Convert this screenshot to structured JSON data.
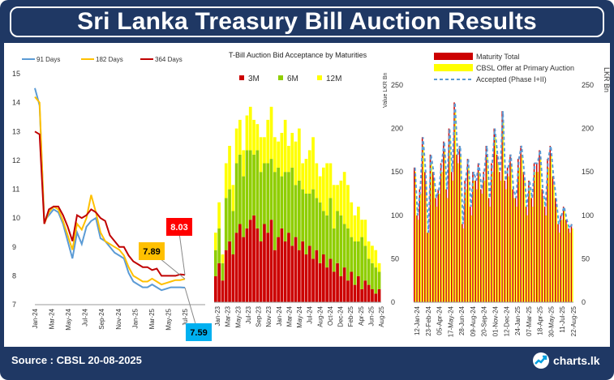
{
  "title": "Sri Lanka Treasury Bill Auction Results",
  "source": "Source : CBSL 20-08-2025",
  "brand": "charts.lk",
  "brand_icon": "chart-arrow-icon",
  "colors": {
    "frame": "#1f3864",
    "d91": "#5b9bd5",
    "d182": "#ffc000",
    "d364": "#c00000",
    "m3": "#cc0000",
    "m6": "#8fce00",
    "m12": "#ffff00",
    "maturity": "#cc0000",
    "offer": "#ffff00",
    "accepted": "#5b9bd5",
    "callout364": "#ff0000",
    "callout182": "#ffc000",
    "callout91": "#00b0f0"
  },
  "chart_data": [
    {
      "type": "line",
      "title": "",
      "legend_position": "top",
      "series": [
        {
          "name": "91 Days",
          "values": [
            14.5,
            13.9,
            9.9,
            10.1,
            10.3,
            10.2,
            9.8,
            9.2,
            8.6,
            9.5,
            9.1,
            9.7,
            9.9,
            10.0,
            9.3,
            9.2,
            9.0,
            8.8,
            8.7,
            8.6,
            8.1,
            7.8,
            7.7,
            7.6,
            7.6,
            7.7,
            7.6,
            7.5,
            7.55,
            7.6,
            7.6,
            7.6,
            7.59
          ]
        },
        {
          "name": "182 Days",
          "values": [
            14.2,
            14.0,
            9.8,
            10.2,
            10.4,
            10.3,
            9.9,
            9.4,
            8.9,
            9.8,
            9.6,
            10.0,
            10.8,
            10.2,
            9.5,
            9.2,
            9.1,
            9.0,
            8.9,
            8.7,
            8.3,
            8.0,
            7.9,
            7.8,
            7.8,
            7.9,
            7.8,
            7.7,
            7.75,
            7.8,
            7.85,
            7.85,
            7.89
          ]
        },
        {
          "name": "364 Days",
          "values": [
            13.0,
            12.9,
            9.8,
            10.3,
            10.4,
            10.4,
            10.1,
            9.7,
            9.2,
            10.1,
            10.0,
            10.1,
            10.3,
            10.2,
            10.0,
            9.9,
            9.4,
            9.2,
            9.0,
            9.0,
            8.7,
            8.5,
            8.4,
            8.3,
            8.3,
            8.2,
            8.25,
            8.0,
            8.0,
            8.0,
            8.0,
            8.05,
            8.03
          ]
        }
      ],
      "x_ticks": [
        "Jan-24",
        "Mar-24",
        "May-24",
        "Jul-24",
        "Sep-24",
        "Nov-24",
        "Jan-25",
        "Mar-25",
        "May-25",
        "Jul-25"
      ],
      "y_ticks": [
        "7",
        "8",
        "9",
        "10",
        "11",
        "12",
        "13",
        "14",
        "15"
      ],
      "ylim": [
        7,
        15
      ],
      "callouts": [
        {
          "series": "364 Days",
          "label": "8.03"
        },
        {
          "series": "182 Days",
          "label": "7.89"
        },
        {
          "series": "91 Days",
          "label": "7.59"
        }
      ]
    },
    {
      "type": "bar",
      "stacked": true,
      "title": "T-Bill Auction Bid Acceptance by Maturities",
      "ylabel": "Value LKR Bn",
      "ylim": [
        0,
        250
      ],
      "y_ticks": [
        "0",
        "50",
        "100",
        "150",
        "200",
        "250"
      ],
      "x_ticks": [
        "Jan-23",
        "Mar-23",
        "May-23",
        "Jul-23",
        "Sep-23",
        "Nov-23",
        "Jan-24",
        "Mar-24",
        "May-24",
        "Jul-24",
        "Aug-24",
        "Oct-24",
        "Dec-24",
        "Feb-25",
        "Apr-25",
        "Jun-25",
        "Aug-25"
      ],
      "legend_position": "top",
      "series": [
        {
          "name": "3M",
          "values": [
            30,
            45,
            25,
            60,
            70,
            55,
            80,
            90,
            75,
            85,
            95,
            100,
            85,
            70,
            90,
            80,
            95,
            60,
            75,
            85,
            70,
            80,
            65,
            75,
            60,
            70,
            55,
            65,
            50,
            60,
            45,
            55,
            40,
            50,
            35,
            45,
            30,
            40,
            25,
            35,
            20,
            30,
            15,
            25,
            20,
            15,
            10,
            15
          ]
        },
        {
          "name": "6M",
          "values": [
            30,
            40,
            20,
            60,
            60,
            50,
            80,
            80,
            70,
            90,
            80,
            70,
            90,
            80,
            70,
            80,
            70,
            90,
            80,
            60,
            80,
            70,
            90,
            60,
            80,
            60,
            70,
            60,
            80,
            60,
            70,
            50,
            60,
            70,
            50,
            60,
            70,
            50,
            60,
            40,
            50,
            40,
            60,
            40,
            30,
            30,
            30,
            20
          ]
        },
        {
          "name": "12M",
          "values": [
            20,
            30,
            10,
            40,
            50,
            30,
            40,
            40,
            30,
            40,
            50,
            40,
            30,
            40,
            30,
            50,
            60,
            40,
            30,
            50,
            60,
            30,
            40,
            50,
            60,
            30,
            40,
            50,
            60,
            40,
            30,
            50,
            60,
            40,
            50,
            30,
            40,
            60,
            50,
            40,
            30,
            40,
            20,
            30,
            20,
            20,
            20,
            10
          ]
        }
      ]
    },
    {
      "type": "bar",
      "title": "",
      "ylabel": "LKR Bn",
      "ylim": [
        0,
        250
      ],
      "y_ticks": [
        "0",
        "50",
        "100",
        "150",
        "200",
        "250"
      ],
      "x_ticks": [
        "12-Jan-24",
        "23-Feb-24",
        "05-Apr-24",
        "17-May-24",
        "28-Jun-24",
        "09-Aug-24",
        "20-Sep-24",
        "01-Nov-24",
        "12-Dec-24",
        "24-Jan-25",
        "07-Mar-25",
        "18-Apr-25",
        "30-May-25",
        "11-Jul-25",
        "22-Aug-25"
      ],
      "legend_position": "top",
      "series": [
        {
          "name": "Maturity Total",
          "values": [
            155,
            100,
            130,
            190,
            150,
            80,
            170,
            150,
            120,
            130,
            160,
            185,
            130,
            200,
            150,
            230,
            170,
            180,
            90,
            140,
            165,
            110,
            150,
            140,
            160,
            130,
            150,
            180,
            120,
            160,
            200,
            170,
            150,
            220,
            140,
            155,
            170,
            130,
            120,
            165,
            180,
            150,
            110,
            140,
            120,
            160,
            160,
            175,
            130,
            110,
            165,
            180,
            145,
            120,
            90,
            100,
            110,
            95,
            85,
            90
          ]
        },
        {
          "name": "CBSL Offer at Primary Auction",
          "values": [
            150,
            95,
            125,
            180,
            140,
            80,
            160,
            140,
            110,
            125,
            150,
            175,
            120,
            190,
            140,
            220,
            160,
            170,
            85,
            130,
            155,
            100,
            140,
            130,
            150,
            125,
            140,
            170,
            110,
            150,
            190,
            160,
            140,
            210,
            130,
            145,
            160,
            120,
            110,
            155,
            170,
            140,
            100,
            130,
            110,
            150,
            150,
            165,
            120,
            100,
            155,
            170,
            135,
            110,
            80,
            95,
            105,
            90,
            80,
            85
          ]
        },
        {
          "name": "Accepted (Phase I+II)",
          "values": [
            155,
            100,
            130,
            190,
            150,
            80,
            170,
            150,
            120,
            130,
            160,
            185,
            130,
            200,
            150,
            230,
            170,
            180,
            90,
            140,
            165,
            110,
            150,
            140,
            160,
            130,
            150,
            180,
            120,
            160,
            200,
            170,
            150,
            220,
            140,
            155,
            170,
            130,
            120,
            165,
            180,
            150,
            110,
            140,
            120,
            160,
            160,
            175,
            130,
            110,
            165,
            180,
            145,
            120,
            90,
            100,
            110,
            95,
            85,
            90
          ]
        }
      ]
    }
  ]
}
